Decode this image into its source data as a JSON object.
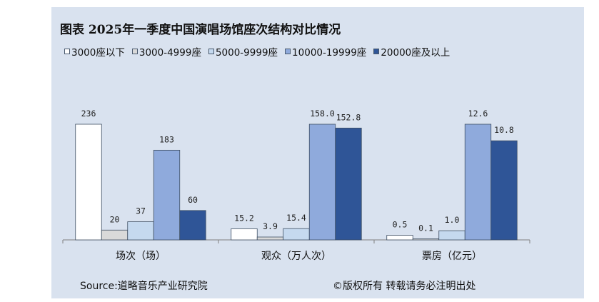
{
  "chart_data": {
    "type": "bar",
    "title": "图表  2025年一季度中国演唱场馆座次结构对比情况",
    "categories": [
      "场次（场）",
      "观众（万人次）",
      "票房（亿元）"
    ],
    "series": [
      {
        "name": "3000座以下",
        "color": "#ffffff",
        "values": [
          236,
          15.2,
          0.5
        ],
        "labels": [
          "236",
          "15.2",
          "0.5"
        ]
      },
      {
        "name": "3000-4999座",
        "color": "#d9d9d9",
        "values": [
          20,
          3.9,
          0.1
        ],
        "labels": [
          "20",
          "3.9",
          "0.1"
        ]
      },
      {
        "name": "5000-9999座",
        "color": "#c5d9ef",
        "values": [
          37,
          15.4,
          1.0
        ],
        "labels": [
          "37",
          "15.4",
          "1.0"
        ]
      },
      {
        "name": "10000-19999座",
        "color": "#8faadc",
        "values": [
          183,
          158.0,
          12.6
        ],
        "labels": [
          "183",
          "158.0",
          "12.6"
        ]
      },
      {
        "name": "20000座及以上",
        "color": "#2f5597",
        "values": [
          60,
          152.8,
          10.8
        ],
        "labels": [
          "60",
          "152.8",
          "10.8"
        ]
      }
    ],
    "group_max": [
      236,
      158.0,
      12.6
    ],
    "legend_position": "top",
    "grid": false
  },
  "footer": {
    "source": "Source:道略音乐产业研究院",
    "copyright": "©版权所有   转载请务必注明出处"
  }
}
